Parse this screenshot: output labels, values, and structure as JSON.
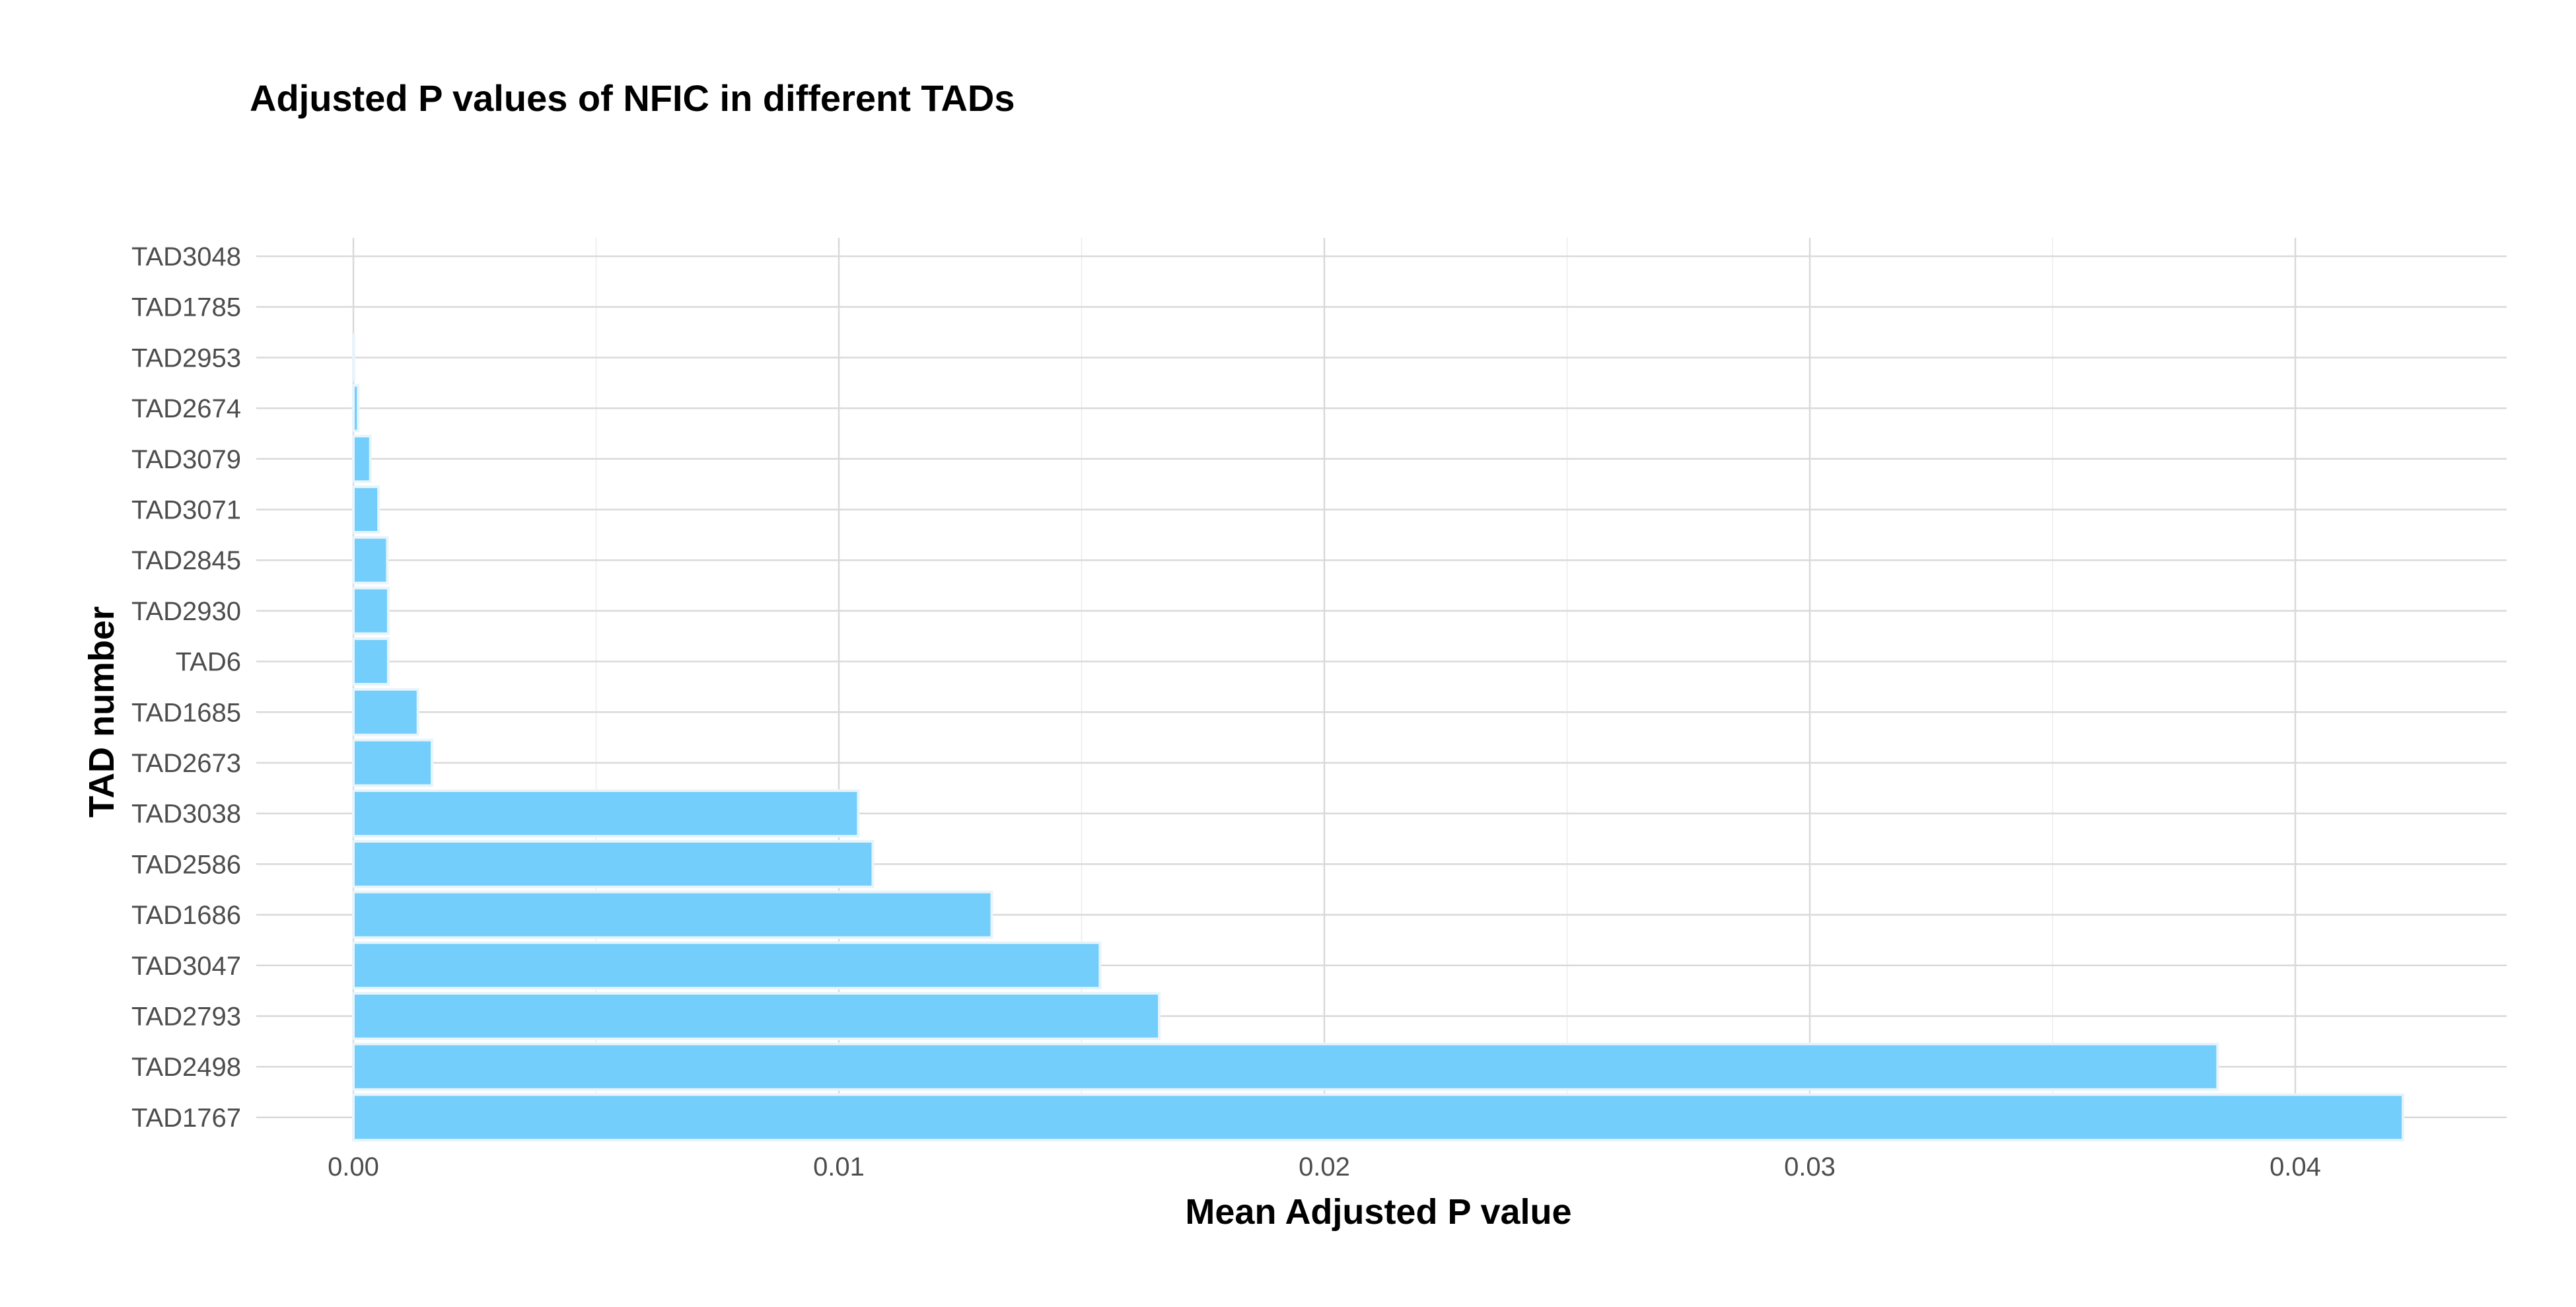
{
  "chart_data": {
    "type": "bar",
    "orientation": "horizontal",
    "title": "Adjusted P values of NFIC in different TADs",
    "xlabel": "Mean Adjusted P value",
    "ylabel": "TAD number",
    "categories": [
      "TAD3048",
      "TAD1785",
      "TAD2953",
      "TAD2674",
      "TAD3079",
      "TAD3071",
      "TAD2845",
      "TAD2930",
      "TAD6",
      "TAD1685",
      "TAD2673",
      "TAD3038",
      "TAD2586",
      "TAD1686",
      "TAD3047",
      "TAD2793",
      "TAD2498",
      "TAD1767"
    ],
    "values": [
      0.0,
      0.0,
      1e-05,
      0.0001,
      0.00035,
      0.00052,
      0.0007,
      0.00072,
      0.00072,
      0.00133,
      0.00162,
      0.0104,
      0.0107,
      0.01315,
      0.01538,
      0.0166,
      0.0384,
      0.04222
    ],
    "xlim": [
      -0.0019,
      0.0442
    ],
    "xticks": [
      0.0,
      0.01,
      0.02,
      0.03,
      0.04
    ],
    "xtick_labels": [
      "0.00",
      "0.01",
      "0.02",
      "0.03",
      "0.04"
    ],
    "grid": true,
    "bar_color": "#73cefc"
  }
}
